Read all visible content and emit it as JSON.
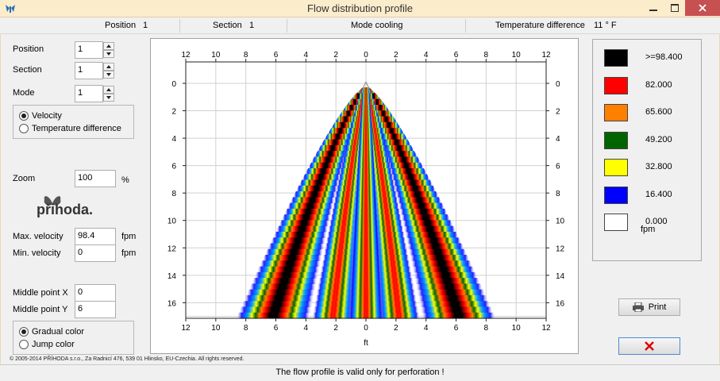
{
  "window": {
    "title": "Flow distribution profile"
  },
  "header": {
    "position_label": "Position",
    "position_value": "1",
    "section_label": "Section",
    "section_value": "1",
    "mode_text": "Mode cooling",
    "tempdiff_label": "Temperature difference",
    "tempdiff_value": "11 ° F"
  },
  "controls": {
    "position": {
      "label": "Position",
      "value": "1"
    },
    "section": {
      "label": "Section",
      "value": "1"
    },
    "mode": {
      "label": "Mode",
      "value": "1"
    },
    "display_options": [
      {
        "label": "Velocity",
        "selected": true
      },
      {
        "label": "Temperature difference",
        "selected": false
      }
    ],
    "zoom": {
      "label": "Zoom",
      "value": "100",
      "unit": "%"
    },
    "logo_text": "přihoda.",
    "max_velocity": {
      "label": "Max. velocity",
      "value": "98.4",
      "unit": "fpm"
    },
    "min_velocity": {
      "label": "Min. velocity",
      "value": "0",
      "unit": "fpm"
    },
    "middle_x": {
      "label": "Middle point X",
      "value": "0"
    },
    "middle_y": {
      "label": "Middle point Y",
      "value": "6"
    },
    "color_options": [
      {
        "label": "Gradual color",
        "selected": true
      },
      {
        "label": "Jump color",
        "selected": false
      }
    ]
  },
  "legend": {
    "unit": "fpm",
    "items": [
      {
        "label": ">=98.400",
        "color": "#000000"
      },
      {
        "label": "82.000",
        "color": "#ff0000"
      },
      {
        "label": "65.600",
        "color": "#ff8000"
      },
      {
        "label": "49.200",
        "color": "#006400"
      },
      {
        "label": "32.800",
        "color": "#ffff00"
      },
      {
        "label": "16.400",
        "color": "#0000ff"
      },
      {
        "label": "0.000",
        "color": "#ffffff"
      }
    ]
  },
  "buttons": {
    "print_label": "Print"
  },
  "chart_data": {
    "type": "heatmap",
    "xlabel": "ft",
    "ylabel": "",
    "x_ticks": [
      "12",
      "10",
      "8",
      "6",
      "4",
      "2",
      "0",
      "2",
      "4",
      "6",
      "8",
      "10",
      "12"
    ],
    "y_ticks": [
      "0",
      "2",
      "4",
      "6",
      "8",
      "10",
      "12",
      "14",
      "16"
    ],
    "xlim": [
      -12,
      12
    ],
    "ylim": [
      0,
      17
    ],
    "grid": true,
    "origin_x": 0,
    "origin_y": 0,
    "max_velocity": 98.4,
    "plumes": [
      {
        "side": "left",
        "center_at_16ft": -6.2,
        "outer_edge_at_17ft": -10
      },
      {
        "side": "left",
        "center_at_16ft": -2.2,
        "outer_edge_at_17ft": -4.5
      },
      {
        "side": "center",
        "center_at_16ft": 0,
        "outer_edge_at_17ft": 2
      },
      {
        "side": "right",
        "center_at_16ft": 2.2,
        "outer_edge_at_17ft": 4.5
      },
      {
        "side": "right",
        "center_at_16ft": 6.2,
        "outer_edge_at_17ft": 10
      }
    ]
  },
  "footer": {
    "copyright": "© 2005-2014 PŘÍHODA s.r.o., Za Radnicí 476, 539 01 Hlinsko, EU-Czechia. All rights reserved.",
    "status": "The flow profile is valid only for perforation !"
  }
}
